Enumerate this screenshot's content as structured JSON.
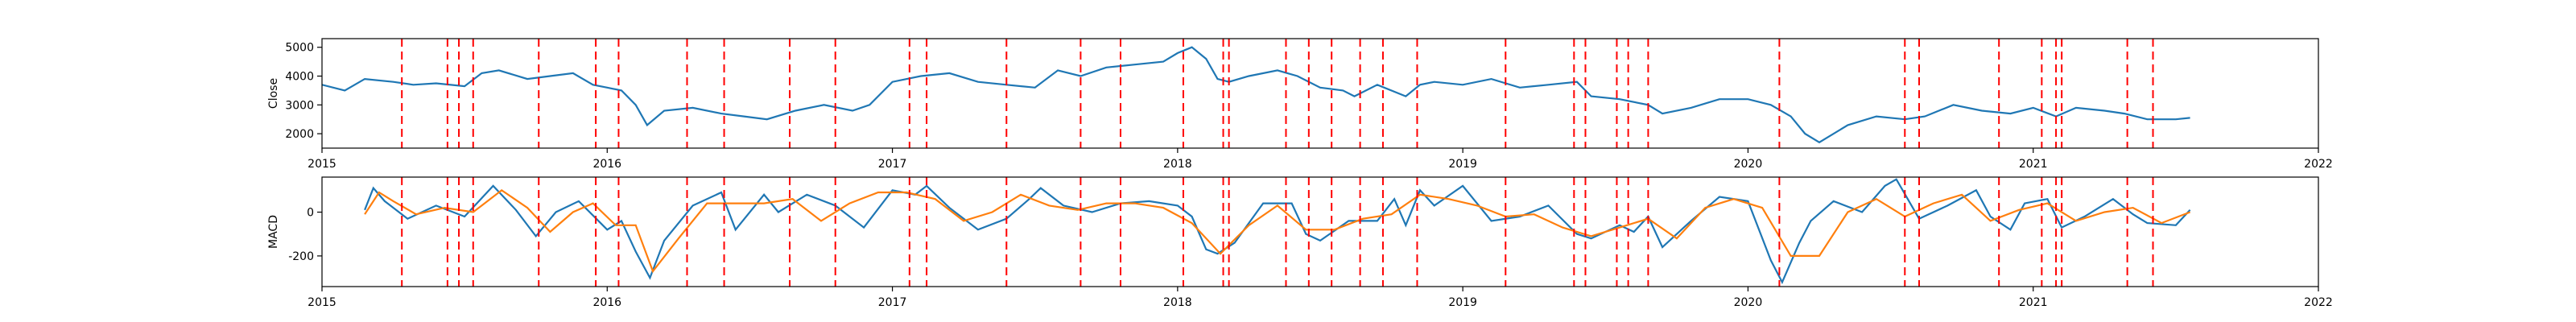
{
  "chart_data": [
    {
      "type": "line",
      "ylabel": "Close",
      "xlim": [
        2015,
        2022
      ],
      "ylim": [
        1500,
        5300
      ],
      "yticks": [
        2000,
        3000,
        4000,
        5000
      ],
      "xticks": [
        "2015",
        "2016",
        "2017",
        "2018",
        "2019",
        "2020",
        "2021",
        "2022"
      ],
      "series": [
        {
          "color": "#1f77b4",
          "x": [
            2015.0,
            2015.08,
            2015.15,
            2015.25,
            2015.32,
            2015.4,
            2015.5,
            2015.56,
            2015.62,
            2015.72,
            2015.8,
            2015.88,
            2015.95,
            2016.0,
            2016.05,
            2016.1,
            2016.14,
            2016.2,
            2016.3,
            2016.4,
            2016.48,
            2016.56,
            2016.66,
            2016.76,
            2016.86,
            2016.92,
            2017.0,
            2017.1,
            2017.2,
            2017.3,
            2017.4,
            2017.5,
            2017.58,
            2017.66,
            2017.75,
            2017.85,
            2017.95,
            2018.0,
            2018.05,
            2018.1,
            2018.14,
            2018.18,
            2018.25,
            2018.35,
            2018.42,
            2018.5,
            2018.58,
            2018.62,
            2018.7,
            2018.8,
            2018.85,
            2018.9,
            2019.0,
            2019.1,
            2019.2,
            2019.3,
            2019.4,
            2019.45,
            2019.55,
            2019.65,
            2019.7,
            2019.8,
            2019.9,
            2020.0,
            2020.08,
            2020.15,
            2020.2,
            2020.25,
            2020.35,
            2020.45,
            2020.55,
            2020.62,
            2020.72,
            2020.82,
            2020.92,
            2021.0,
            2021.08,
            2021.15,
            2021.25,
            2021.32,
            2021.4,
            2021.5,
            2021.55
          ],
          "y": [
            3700,
            3500,
            3900,
            3800,
            3700,
            3750,
            3650,
            4100,
            4200,
            3900,
            4000,
            4100,
            3700,
            3600,
            3500,
            3000,
            2300,
            2800,
            2900,
            2700,
            2600,
            2500,
            2800,
            3000,
            2800,
            3000,
            3800,
            4000,
            4100,
            3800,
            3700,
            3600,
            4200,
            4000,
            4300,
            4400,
            4500,
            4800,
            5000,
            4600,
            3900,
            3800,
            4000,
            4200,
            4000,
            3600,
            3500,
            3300,
            3700,
            3300,
            3700,
            3800,
            3700,
            3900,
            3600,
            3700,
            3800,
            3300,
            3200,
            3000,
            2700,
            2900,
            3200,
            3200,
            3000,
            2600,
            2000,
            1700,
            2300,
            2600,
            2500,
            2600,
            3000,
            2800,
            2700,
            2900,
            2600,
            2900,
            2800,
            2700,
            2500,
            2500,
            2550
          ]
        }
      ],
      "vlines": [
        2015.28,
        2015.44,
        2015.48,
        2015.53,
        2015.76,
        2015.96,
        2016.04,
        2016.28,
        2016.41,
        2016.64,
        2016.8,
        2017.06,
        2017.12,
        2017.4,
        2017.66,
        2017.8,
        2018.02,
        2018.16,
        2018.18,
        2018.38,
        2018.46,
        2018.54,
        2018.64,
        2018.72,
        2018.84,
        2019.15,
        2019.39,
        2019.43,
        2019.54,
        2019.58,
        2019.65,
        2020.11,
        2020.55,
        2020.6,
        2020.88,
        2021.03,
        2021.08,
        2021.1,
        2021.33,
        2021.42
      ]
    },
    {
      "type": "line",
      "ylabel": "MACD",
      "xlim": [
        2015,
        2022
      ],
      "ylim": [
        -340,
        160
      ],
      "yticks": [
        -200,
        0
      ],
      "xticks": [
        "2015",
        "2016",
        "2017",
        "2018",
        "2019",
        "2020",
        "2021",
        "2022"
      ],
      "series": [
        {
          "color": "#1f77b4",
          "x": [
            2015.15,
            2015.18,
            2015.22,
            2015.3,
            2015.4,
            2015.5,
            2015.6,
            2015.68,
            2015.75,
            2015.82,
            2015.9,
            2016.0,
            2016.05,
            2016.1,
            2016.15,
            2016.2,
            2016.3,
            2016.4,
            2016.45,
            2016.55,
            2016.6,
            2016.7,
            2016.8,
            2016.9,
            2017.0,
            2017.08,
            2017.12,
            2017.2,
            2017.3,
            2017.4,
            2017.48,
            2017.52,
            2017.6,
            2017.7,
            2017.8,
            2017.9,
            2018.0,
            2018.05,
            2018.1,
            2018.14,
            2018.2,
            2018.3,
            2018.4,
            2018.45,
            2018.5,
            2018.6,
            2018.7,
            2018.76,
            2018.8,
            2018.85,
            2018.9,
            2019.0,
            2019.1,
            2019.2,
            2019.3,
            2019.4,
            2019.45,
            2019.55,
            2019.6,
            2019.65,
            2019.7,
            2019.8,
            2019.9,
            2020.0,
            2020.08,
            2020.12,
            2020.18,
            2020.22,
            2020.3,
            2020.4,
            2020.48,
            2020.52,
            2020.6,
            2020.7,
            2020.8,
            2020.85,
            2020.92,
            2020.97,
            2021.05,
            2021.1,
            2021.18,
            2021.28,
            2021.35,
            2021.4,
            2021.5,
            2021.55
          ],
          "y": [
            10,
            110,
            50,
            -30,
            30,
            -20,
            120,
            10,
            -110,
            0,
            50,
            -80,
            -40,
            -180,
            -300,
            -130,
            30,
            90,
            -80,
            80,
            0,
            80,
            30,
            -70,
            100,
            80,
            120,
            20,
            -80,
            -30,
            60,
            110,
            30,
            0,
            40,
            50,
            30,
            -20,
            -170,
            -190,
            -140,
            40,
            40,
            -100,
            -130,
            -40,
            -40,
            60,
            -60,
            100,
            30,
            120,
            -40,
            -20,
            30,
            -100,
            -120,
            -60,
            -90,
            -20,
            -160,
            -40,
            70,
            50,
            -220,
            -320,
            -140,
            -40,
            50,
            0,
            120,
            150,
            -30,
            30,
            100,
            -20,
            -80,
            40,
            60,
            -70,
            -20,
            60,
            -10,
            -50,
            -60,
            10
          ],
          "note": "MACD"
        },
        {
          "color": "#ff7f0e",
          "x": [
            2015.15,
            2015.2,
            2015.25,
            2015.33,
            2015.43,
            2015.53,
            2015.63,
            2015.72,
            2015.8,
            2015.88,
            2015.95,
            2016.03,
            2016.1,
            2016.16,
            2016.25,
            2016.35,
            2016.45,
            2016.55,
            2016.65,
            2016.75,
            2016.85,
            2016.95,
            2017.05,
            2017.15,
            2017.25,
            2017.35,
            2017.45,
            2017.55,
            2017.65,
            2017.75,
            2017.85,
            2017.95,
            2018.05,
            2018.15,
            2018.25,
            2018.35,
            2018.45,
            2018.55,
            2018.65,
            2018.75,
            2018.85,
            2018.95,
            2019.05,
            2019.15,
            2019.25,
            2019.35,
            2019.45,
            2019.55,
            2019.65,
            2019.75,
            2019.85,
            2019.95,
            2020.05,
            2020.15,
            2020.25,
            2020.35,
            2020.45,
            2020.55,
            2020.65,
            2020.75,
            2020.85,
            2020.95,
            2021.05,
            2021.15,
            2021.25,
            2021.35,
            2021.45,
            2021.55
          ],
          "y": [
            -10,
            90,
            50,
            -10,
            20,
            0,
            100,
            20,
            -90,
            0,
            40,
            -60,
            -60,
            -270,
            -120,
            40,
            40,
            40,
            60,
            -40,
            40,
            90,
            90,
            60,
            -40,
            0,
            80,
            30,
            10,
            40,
            40,
            20,
            -50,
            -190,
            -60,
            30,
            -80,
            -80,
            -30,
            -10,
            80,
            60,
            30,
            -20,
            -10,
            -70,
            -110,
            -70,
            -30,
            -120,
            20,
            60,
            20,
            -200,
            -200,
            0,
            60,
            -20,
            40,
            80,
            -40,
            10,
            40,
            -40,
            0,
            20,
            -50,
            0
          ]
        }
      ],
      "vlines": [
        2015.28,
        2015.44,
        2015.48,
        2015.53,
        2015.76,
        2015.96,
        2016.04,
        2016.28,
        2016.41,
        2016.64,
        2016.8,
        2017.06,
        2017.12,
        2017.4,
        2017.66,
        2017.8,
        2018.02,
        2018.16,
        2018.18,
        2018.38,
        2018.46,
        2018.54,
        2018.64,
        2018.72,
        2018.84,
        2019.15,
        2019.39,
        2019.43,
        2019.54,
        2019.58,
        2019.65,
        2020.11,
        2020.55,
        2020.6,
        2020.88,
        2021.03,
        2021.08,
        2021.1,
        2021.33,
        2021.42
      ]
    }
  ]
}
